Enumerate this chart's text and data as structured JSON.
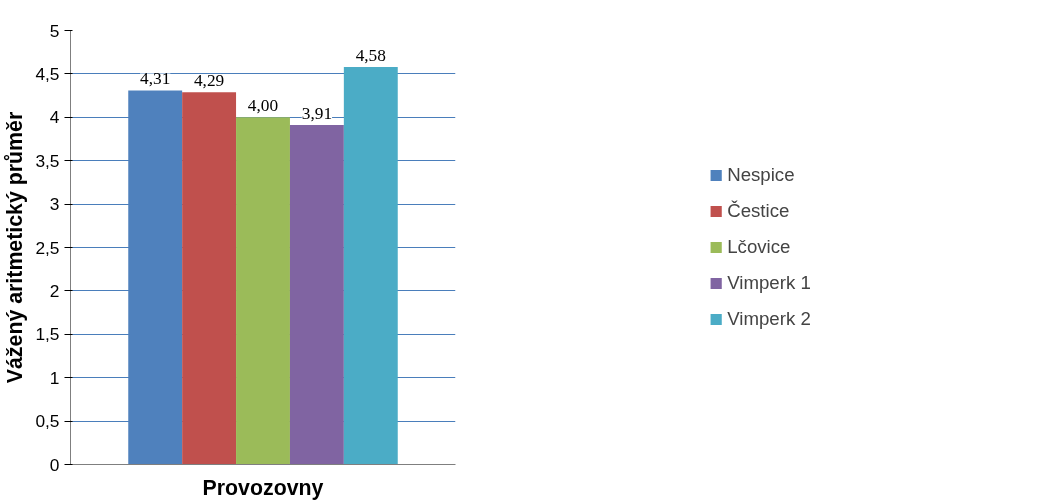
{
  "chart_data": {
    "type": "bar",
    "xlabel": "Provozovny",
    "ylabel": "Vážený aritmetický průměr",
    "categories": [
      null
    ],
    "series": [
      {
        "name": "Nespice",
        "color": "#4f81bd",
        "values": [
          4.31
        ],
        "value_labels": [
          "4,31"
        ]
      },
      {
        "name": "Čestice",
        "color": "#c0504d",
        "values": [
          4.29
        ],
        "value_labels": [
          "4,29"
        ]
      },
      {
        "name": "Lčovice",
        "color": "#9bbb59",
        "values": [
          4.0
        ],
        "value_labels": [
          "4,00"
        ]
      },
      {
        "name": "Vimperk 1",
        "color": "#8064a2",
        "values": [
          3.91
        ],
        "value_labels": [
          "3,91"
        ]
      },
      {
        "name": "Vimperk 2",
        "color": "#4bacc6",
        "values": [
          4.58
        ],
        "value_labels": [
          "4,58"
        ]
      }
    ],
    "ylim": [
      0,
      5
    ],
    "yticks": [
      0,
      {
        "value": 0.5,
        "label": "0,5"
      },
      1,
      {
        "value": 1.5,
        "label": "1,5"
      },
      2,
      {
        "value": 2.5,
        "label": "2,5"
      },
      3,
      {
        "value": 3.5,
        "label": "3,5"
      },
      4,
      {
        "value": 4.5,
        "label": "4,5"
      },
      5
    ],
    "grid": "y",
    "legend": "right"
  }
}
